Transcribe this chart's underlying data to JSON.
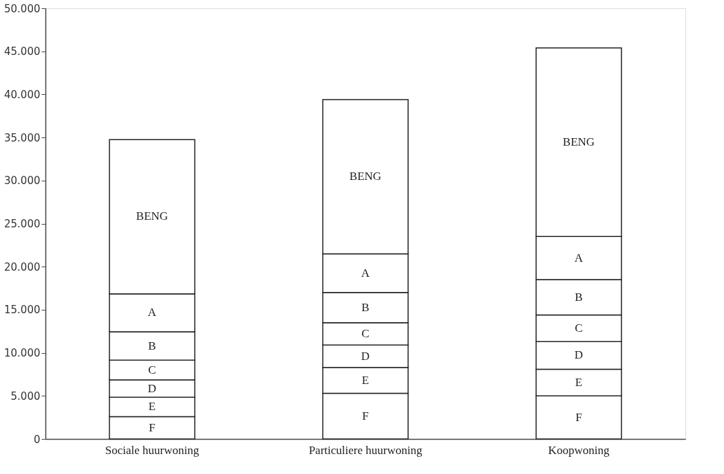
{
  "chart_data": {
    "type": "bar",
    "stacked": true,
    "grid": false,
    "categories": [
      "Sociale huurwoning",
      "Particuliere huurwoning",
      "Koopwoning"
    ],
    "ylim": [
      0,
      50000
    ],
    "yticks": [
      0,
      {
        "value": 5000,
        "label": "5.000"
      },
      {
        "value": 10000,
        "label": "10.000"
      },
      {
        "value": 15000,
        "label": "15.000"
      },
      {
        "value": 20000,
        "label": "20.000"
      },
      {
        "value": 25000,
        "label": "25.000"
      },
      {
        "value": 30000,
        "label": "30.000"
      },
      {
        "value": 35000,
        "label": "35.000"
      },
      {
        "value": 40000,
        "label": "40.000"
      },
      {
        "value": 45000,
        "label": "45.000"
      },
      {
        "value": 50000,
        "label": "50.000"
      }
    ],
    "series": [
      {
        "name": "F",
        "color": "#ffffff",
        "values": [
          2600,
          5300,
          5000
        ]
      },
      {
        "name": "E",
        "color": "#ffffff",
        "values": [
          2250,
          3000,
          3100
        ]
      },
      {
        "name": "D",
        "color": "#ffffff",
        "values": [
          2000,
          2600,
          3200
        ]
      },
      {
        "name": "C",
        "color": "#ffffff",
        "values": [
          2300,
          2600,
          3100
        ]
      },
      {
        "name": "B",
        "color": "#ffffff",
        "values": [
          3300,
          3500,
          4100
        ]
      },
      {
        "name": "A",
        "color": "#ffffff",
        "values": [
          4400,
          4500,
          5000
        ]
      },
      {
        "name": "BENG",
        "color": "#ffffff",
        "values": [
          17900,
          17900,
          21900
        ]
      }
    ]
  }
}
